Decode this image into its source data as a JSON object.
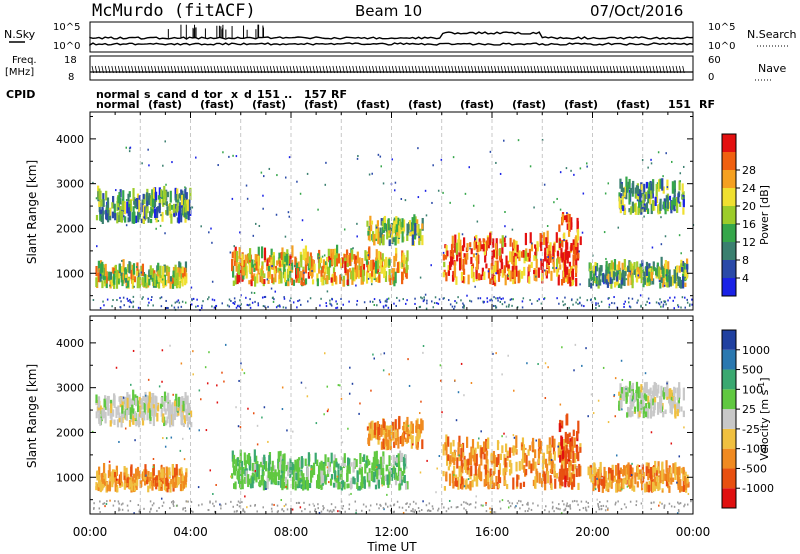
{
  "header": {
    "station": "McMurdo (fitACF)",
    "beam": "Beam 10",
    "date": "07/Oct/2016"
  },
  "params_panel": {
    "left_labels": [
      "N.Sky",
      "Freq.",
      "[MHz]",
      "CPID"
    ],
    "right_labels": [
      "N.Search",
      "Nave"
    ],
    "noise_ticks_left": [
      "10^5",
      "10^0"
    ],
    "noise_ticks_right": [
      "10^5",
      "10^0"
    ],
    "freq_ticks": [
      "18",
      "8"
    ],
    "nave_ticks": [
      "60",
      "0"
    ],
    "cpid_row1": [
      "normal",
      "s",
      "cand",
      "d",
      "tor",
      "x",
      "d",
      "151",
      "..",
      "157",
      "RF"
    ],
    "cpid_row2": [
      "normal",
      "(fast)",
      "(fast)",
      "(fast)",
      "(fast)",
      "(fast)",
      "(fast)",
      "(fast)",
      "(fast)",
      "(fast)",
      "(fast)",
      "151",
      "RF"
    ]
  },
  "chart_data": [
    {
      "type": "heatmap",
      "panel": "power",
      "ylabel": "Slant Range [km]",
      "xlabel": "Time UT",
      "x_ticks": [
        "00:00",
        "04:00",
        "08:00",
        "12:00",
        "16:00",
        "20:00",
        "00:00"
      ],
      "y_ticks": [
        1000,
        2000,
        3000,
        4000
      ],
      "xlim_hours": [
        0,
        24
      ],
      "ylim_km": [
        180,
        4600
      ],
      "colorbar": {
        "label": "Power [dB]",
        "ticks": [
          "4",
          "8",
          "12",
          "16",
          "20",
          "24",
          "28"
        ],
        "colors": [
          "#1a22e6",
          "#2a4aa8",
          "#3a7f6f",
          "#35a64a",
          "#9ccc2a",
          "#f0e030",
          "#f5a020",
          "#f06010",
          "#e31010"
        ]
      },
      "echo_regions": [
        {
          "t0": 0.2,
          "t1": 3.8,
          "r0": 650,
          "r1": 1050,
          "level": 0.55
        },
        {
          "t0": 0.2,
          "t1": 4.0,
          "r0": 2100,
          "r1": 2700,
          "level": 0.35
        },
        {
          "t0": 5.6,
          "t1": 12.6,
          "r0": 700,
          "r1": 1350,
          "level": 0.65
        },
        {
          "t0": 11.0,
          "t1": 13.2,
          "r0": 1600,
          "r1": 2100,
          "level": 0.45
        },
        {
          "t0": 14.0,
          "t1": 19.5,
          "r0": 700,
          "r1": 1700,
          "level": 0.82
        },
        {
          "t0": 18.6,
          "t1": 19.4,
          "r0": 700,
          "r1": 2200,
          "level": 0.9
        },
        {
          "t0": 19.8,
          "t1": 23.8,
          "r0": 650,
          "r1": 1100,
          "level": 0.45
        },
        {
          "t0": 21.0,
          "t1": 23.6,
          "r0": 2300,
          "r1": 2900,
          "level": 0.35
        }
      ]
    },
    {
      "type": "heatmap",
      "panel": "velocity",
      "ylabel": "Slant Range [km]",
      "xlabel": "Time UT",
      "x_ticks": [
        "00:00",
        "04:00",
        "08:00",
        "12:00",
        "16:00",
        "20:00",
        "00:00"
      ],
      "y_ticks": [
        1000,
        2000,
        3000,
        4000
      ],
      "xlim_hours": [
        0,
        24
      ],
      "ylim_km": [
        180,
        4600
      ],
      "colorbar": {
        "label": "Velocity [m s",
        "label_sup": "-1",
        "label_end": "]",
        "ticks": [
          "1000",
          "500",
          "100",
          "25",
          "-25",
          "-100",
          "-500",
          "-1000"
        ],
        "colors": [
          "#2040a0",
          "#2a78b0",
          "#3aa870",
          "#60c840",
          "#c8c8c8",
          "#f0c040",
          "#f08a20",
          "#e85010",
          "#e01010"
        ]
      },
      "echo_regions": [
        {
          "t0": 0.2,
          "t1": 3.8,
          "r0": 650,
          "r1": 1050,
          "vel": "away"
        },
        {
          "t0": 0.2,
          "t1": 4.0,
          "r0": 2100,
          "r1": 2700,
          "vel": "zero"
        },
        {
          "t0": 5.6,
          "t1": 12.6,
          "r0": 700,
          "r1": 1350,
          "vel": "toward"
        },
        {
          "t0": 11.0,
          "t1": 13.2,
          "r0": 1600,
          "r1": 2100,
          "vel": "away"
        },
        {
          "t0": 14.0,
          "t1": 19.5,
          "r0": 700,
          "r1": 1700,
          "vel": "away"
        },
        {
          "t0": 18.6,
          "t1": 19.4,
          "r0": 700,
          "r1": 2200,
          "vel": "strong-away"
        },
        {
          "t0": 19.8,
          "t1": 23.8,
          "r0": 650,
          "r1": 1100,
          "vel": "away"
        },
        {
          "t0": 21.0,
          "t1": 23.6,
          "r0": 2300,
          "r1": 2900,
          "vel": "zero"
        }
      ]
    }
  ]
}
